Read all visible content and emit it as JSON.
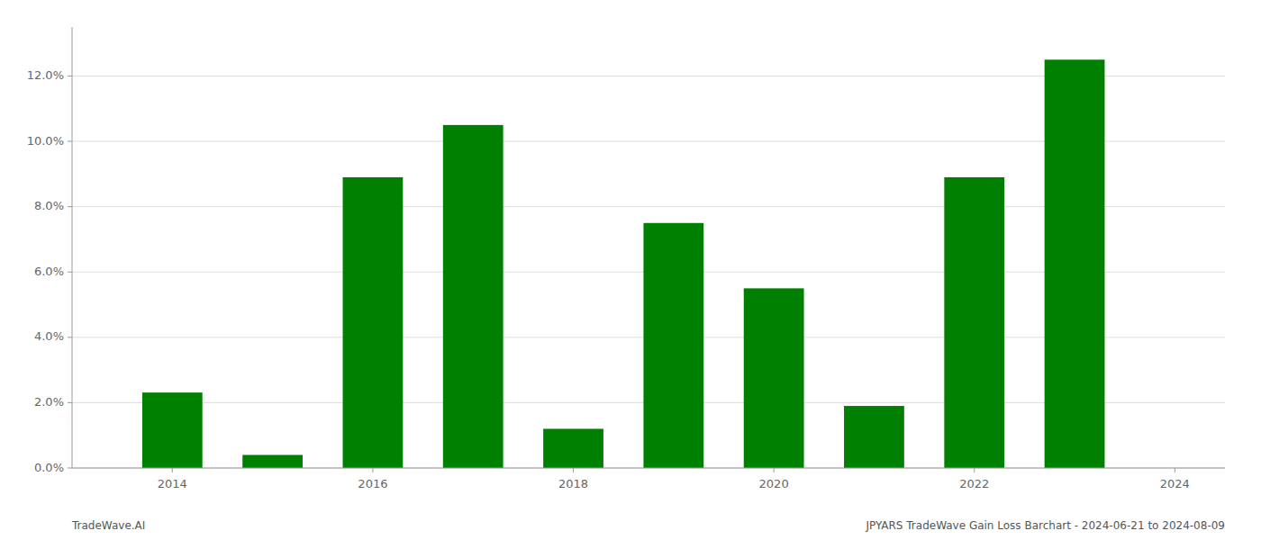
{
  "chart_data": {
    "type": "bar",
    "x": [
      2014,
      2015,
      2016,
      2017,
      2018,
      2019,
      2020,
      2021,
      2022,
      2023
    ],
    "values": [
      0.0231,
      0.004,
      0.089,
      0.105,
      0.012,
      0.075,
      0.055,
      0.019,
      0.089,
      0.125
    ],
    "color": "#008000",
    "xlim": [
      2013.0,
      2024.5
    ],
    "xticks": [
      2014,
      2016,
      2018,
      2020,
      2022,
      2024
    ],
    "ylim": [
      0,
      0.135
    ],
    "yticks": [
      {
        "value": 0.0,
        "label": "0.0%"
      },
      {
        "value": 0.02,
        "label": "2.0%"
      },
      {
        "value": 0.04,
        "label": "4.0%"
      },
      {
        "value": 0.06,
        "label": "6.0%"
      },
      {
        "value": 0.08,
        "label": "8.0%"
      },
      {
        "value": 0.1,
        "label": "10.0%"
      },
      {
        "value": 0.12,
        "label": "12.0%"
      }
    ],
    "grid": true,
    "annotations": [
      "TradeWave.AI",
      "JPYARS TradeWave Gain Loss Barchart - 2024-06-21 to 2024-08-09"
    ]
  }
}
